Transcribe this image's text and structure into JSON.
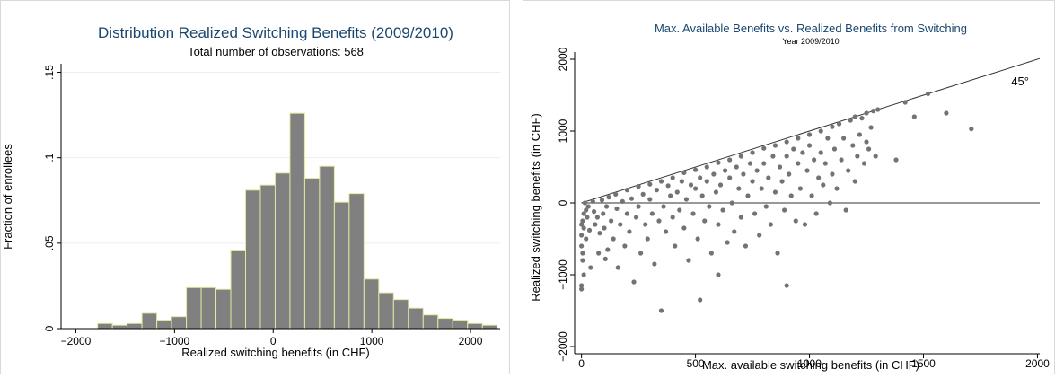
{
  "chart_data": [
    {
      "type": "bar",
      "title": "Distribution Realized Switching Benefits (2009/2010)",
      "subtitle": "Total number of observations: 568",
      "xlabel": "Realized switching benefits (in CHF)",
      "ylabel": "Fraction of enrollees",
      "xlim": [
        -2150,
        2300
      ],
      "ylim": [
        0,
        0.155
      ],
      "xticks": [
        -2000,
        -1000,
        0,
        1000,
        2000
      ],
      "xtick_labels": [
        "−2000",
        "−1000",
        "0",
        "1000",
        "2000"
      ],
      "yticks": [
        0,
        0.05,
        0.1,
        0.15
      ],
      "ytick_labels": [
        "0",
        ".05",
        ".1",
        ".15"
      ],
      "bin_width": 150,
      "bins_left": [
        -1780,
        -1630,
        -1480,
        -1330,
        -1180,
        -1030,
        -880,
        -730,
        -580,
        -430,
        -280,
        -130,
        20,
        170,
        320,
        470,
        620,
        770,
        920,
        1070,
        1220,
        1370,
        1520,
        1670,
        1820,
        1970,
        2120
      ],
      "values": [
        0.003,
        0.002,
        0.003,
        0.009,
        0.005,
        0.007,
        0.024,
        0.024,
        0.023,
        0.046,
        0.081,
        0.084,
        0.091,
        0.126,
        0.088,
        0.095,
        0.074,
        0.079,
        0.029,
        0.021,
        0.017,
        0.012,
        0.008,
        0.006,
        0.005,
        0.003,
        0.002
      ],
      "grid": true,
      "colors": {
        "bar": "#808080",
        "bar_edge": "#e6e6a0",
        "grid": "#e8eef2",
        "title": "#1a476f"
      }
    },
    {
      "type": "scatter",
      "title": "Max. Available Benefits  vs. Realized Benefits from Switching",
      "subtitle": "Year 2009/2010",
      "xlabel": "Max. available switching benefits (in CHF)",
      "ylabel": "Realized switching benefits (in CHF)",
      "xlim": [
        -30,
        2010
      ],
      "ylim": [
        -2100,
        2100
      ],
      "xticks": [
        0,
        500,
        1000,
        1500,
        2000
      ],
      "xtick_labels": [
        "0",
        "500",
        "1000",
        "1500",
        "2000"
      ],
      "yticks": [
        -2000,
        -1000,
        0,
        1000,
        2000
      ],
      "ytick_labels": [
        "−2000",
        "−1000",
        "0",
        "1000",
        "2000"
      ],
      "annotation": "45°",
      "reference_lines": [
        {
          "kind": "diagonal",
          "slope": 1,
          "intercept": 0
        },
        {
          "kind": "horizontal",
          "y": 0
        }
      ],
      "points": [
        [
          0,
          -300
        ],
        [
          0,
          -450
        ],
        [
          0,
          -600
        ],
        [
          0,
          -1150
        ],
        [
          0,
          -1200
        ],
        [
          5,
          -250
        ],
        [
          5,
          -700
        ],
        [
          5,
          -800
        ],
        [
          10,
          -150
        ],
        [
          10,
          -350
        ],
        [
          10,
          -1000
        ],
        [
          15,
          0
        ],
        [
          20,
          -100
        ],
        [
          20,
          -500
        ],
        [
          25,
          -200
        ],
        [
          30,
          -50
        ],
        [
          35,
          -380
        ],
        [
          40,
          -900
        ],
        [
          50,
          20
        ],
        [
          55,
          -120
        ],
        [
          60,
          -300
        ],
        [
          70,
          -200
        ],
        [
          75,
          -700
        ],
        [
          80,
          -420
        ],
        [
          90,
          40
        ],
        [
          95,
          -150
        ],
        [
          100,
          -350
        ],
        [
          105,
          -780
        ],
        [
          110,
          -50
        ],
        [
          115,
          -650
        ],
        [
          120,
          80
        ],
        [
          130,
          -250
        ],
        [
          140,
          -500
        ],
        [
          150,
          120
        ],
        [
          155,
          -80
        ],
        [
          160,
          -900
        ],
        [
          170,
          -300
        ],
        [
          180,
          20
        ],
        [
          190,
          -600
        ],
        [
          200,
          180
        ],
        [
          200,
          -150
        ],
        [
          210,
          -400
        ],
        [
          220,
          60
        ],
        [
          230,
          -1100
        ],
        [
          240,
          -200
        ],
        [
          250,
          230
        ],
        [
          250,
          -50
        ],
        [
          260,
          -700
        ],
        [
          270,
          120
        ],
        [
          280,
          -300
        ],
        [
          290,
          -500
        ],
        [
          300,
          260
        ],
        [
          300,
          50
        ],
        [
          310,
          -150
        ],
        [
          320,
          -850
        ],
        [
          330,
          180
        ],
        [
          340,
          -250
        ],
        [
          350,
          300
        ],
        [
          350,
          -1500
        ],
        [
          360,
          -50
        ],
        [
          370,
          -400
        ],
        [
          380,
          240
        ],
        [
          390,
          100
        ],
        [
          400,
          350
        ],
        [
          400,
          -200
        ],
        [
          410,
          -600
        ],
        [
          420,
          150
        ],
        [
          430,
          -100
        ],
        [
          440,
          300
        ],
        [
          450,
          420
        ],
        [
          450,
          -350
        ],
        [
          460,
          50
        ],
        [
          470,
          -800
        ],
        [
          480,
          250
        ],
        [
          490,
          -150
        ],
        [
          500,
          460
        ],
        [
          500,
          200
        ],
        [
          510,
          -500
        ],
        [
          520,
          350
        ],
        [
          520,
          -1350
        ],
        [
          530,
          100
        ],
        [
          540,
          -250
        ],
        [
          550,
          500
        ],
        [
          550,
          300
        ],
        [
          560,
          -50
        ],
        [
          570,
          -700
        ],
        [
          580,
          400
        ],
        [
          590,
          150
        ],
        [
          600,
          560
        ],
        [
          600,
          -300
        ],
        [
          600,
          -1000
        ],
        [
          610,
          250
        ],
        [
          620,
          -100
        ],
        [
          630,
          450
        ],
        [
          640,
          -550
        ],
        [
          650,
          600
        ],
        [
          650,
          350
        ],
        [
          660,
          0
        ],
        [
          670,
          -400
        ],
        [
          680,
          500
        ],
        [
          690,
          200
        ],
        [
          700,
          650
        ],
        [
          700,
          -200
        ],
        [
          710,
          400
        ],
        [
          720,
          -600
        ],
        [
          730,
          100
        ],
        [
          740,
          550
        ],
        [
          750,
          700
        ],
        [
          750,
          300
        ],
        [
          760,
          -150
        ],
        [
          770,
          450
        ],
        [
          780,
          -450
        ],
        [
          790,
          200
        ],
        [
          800,
          760
        ],
        [
          800,
          550
        ],
        [
          810,
          -50
        ],
        [
          820,
          350
        ],
        [
          830,
          -300
        ],
        [
          840,
          650
        ],
        [
          850,
          800
        ],
        [
          850,
          150
        ],
        [
          860,
          -700
        ],
        [
          870,
          500
        ],
        [
          880,
          300
        ],
        [
          890,
          -100
        ],
        [
          900,
          850
        ],
        [
          900,
          650
        ],
        [
          900,
          -1150
        ],
        [
          910,
          400
        ],
        [
          920,
          100
        ],
        [
          930,
          750
        ],
        [
          940,
          -250
        ],
        [
          950,
          900
        ],
        [
          950,
          550
        ],
        [
          960,
          200
        ],
        [
          970,
          700
        ],
        [
          980,
          -300
        ],
        [
          990,
          450
        ],
        [
          1000,
          950
        ],
        [
          1000,
          800
        ],
        [
          1010,
          100
        ],
        [
          1020,
          600
        ],
        [
          1030,
          -150
        ],
        [
          1040,
          350
        ],
        [
          1050,
          1000
        ],
        [
          1050,
          700
        ],
        [
          1060,
          250
        ],
        [
          1070,
          550
        ],
        [
          1080,
          900
        ],
        [
          1090,
          0
        ],
        [
          1100,
          1060
        ],
        [
          1100,
          400
        ],
        [
          1110,
          750
        ],
        [
          1120,
          200
        ],
        [
          1130,
          1100
        ],
        [
          1140,
          600
        ],
        [
          1150,
          900
        ],
        [
          1160,
          -100
        ],
        [
          1170,
          450
        ],
        [
          1180,
          1150
        ],
        [
          1190,
          800
        ],
        [
          1200,
          1200
        ],
        [
          1200,
          300
        ],
        [
          1210,
          650
        ],
        [
          1220,
          950
        ],
        [
          1230,
          1180
        ],
        [
          1240,
          550
        ],
        [
          1250,
          1250
        ],
        [
          1250,
          850
        ],
        [
          1260,
          750
        ],
        [
          1270,
          1050
        ],
        [
          1280,
          1280
        ],
        [
          1290,
          650
        ],
        [
          1300,
          1300
        ],
        [
          1380,
          600
        ],
        [
          1420,
          1400
        ],
        [
          1460,
          1200
        ],
        [
          1520,
          1520
        ],
        [
          1600,
          1250
        ],
        [
          1710,
          1030
        ]
      ],
      "grid": false,
      "colors": {
        "point": "#737373",
        "line": "#333333",
        "title": "#1a476f"
      }
    }
  ]
}
